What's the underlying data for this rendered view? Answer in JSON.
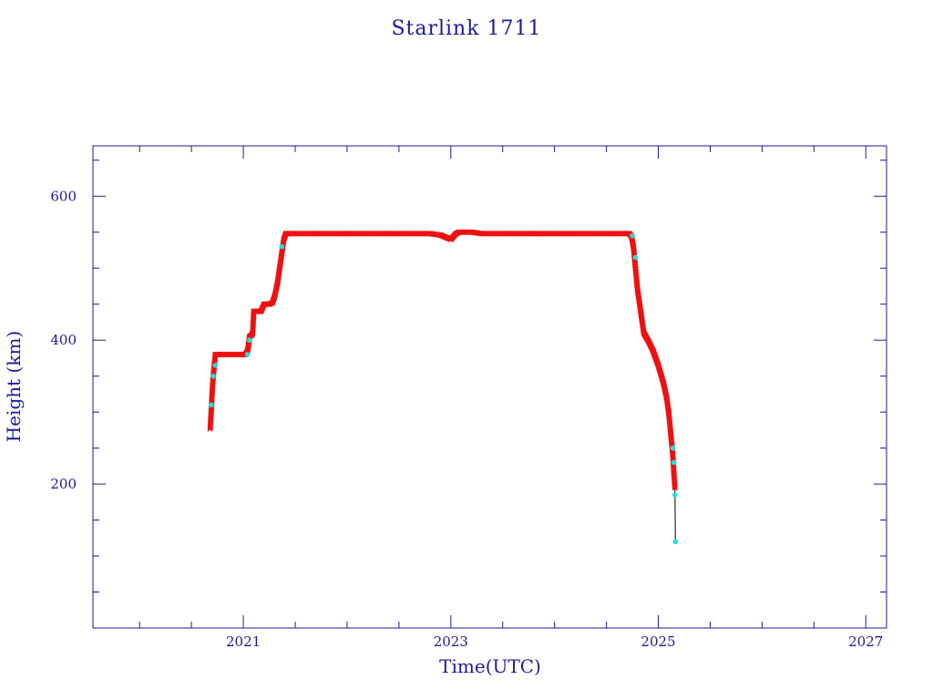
{
  "chart_data": {
    "type": "scatter",
    "title": "Starlink 1711",
    "xlabel": "Time(UTC)",
    "ylabel": "Height (km)",
    "xlim": [
      2019.55,
      2027.2
    ],
    "ylim": [
      0,
      670
    ],
    "x_major_ticks": [
      2021,
      2023,
      2025,
      2027
    ],
    "x_tick_labels": [
      "2021",
      "2023",
      "2025",
      "2027"
    ],
    "x_minor_ticks": [
      2020,
      2020.5,
      2021.5,
      2022,
      2022.5,
      2023.5,
      2024,
      2024.5,
      2025.5,
      2026,
      2026.5
    ],
    "y_major_ticks": [
      200,
      400,
      600
    ],
    "y_tick_labels": [
      "200",
      "400",
      "600"
    ],
    "y_minor_ticks": [
      50,
      100,
      150,
      250,
      300,
      350,
      450,
      500,
      550,
      650
    ],
    "grid": false,
    "colors": {
      "axes": "#1a1a9c",
      "red_series": "#ee1111",
      "cyan_series": "#22dddd",
      "line": "#000000"
    },
    "series": [
      {
        "marker": "x",
        "color": "#ee1111",
        "x": [
          2020.68,
          2020.69,
          2020.7,
          2020.71,
          2020.72,
          2020.73,
          2020.74,
          2020.78,
          2020.85,
          2020.92,
          2020.99,
          2021.0,
          2021.02,
          2021.04,
          2021.05,
          2021.06,
          2021.08,
          2021.09,
          2021.1,
          2021.12,
          2021.14,
          2021.17,
          2021.2,
          2021.22,
          2021.25,
          2021.28,
          2021.3,
          2021.33,
          2021.35,
          2021.37,
          2021.39,
          2021.41,
          2021.43,
          2021.45,
          2021.5,
          2021.7,
          2022.0,
          2022.4,
          2022.8,
          2022.9,
          2023.0,
          2023.05,
          2023.08,
          2023.12,
          2023.2,
          2023.3,
          2023.5,
          2023.8,
          2024.2,
          2024.6,
          2024.72,
          2024.74,
          2024.76,
          2024.78,
          2024.8,
          2024.83,
          2024.86,
          2024.9,
          2024.95,
          2025.0,
          2025.05,
          2025.08,
          2025.1,
          2025.12,
          2025.14,
          2025.15,
          2025.16
        ],
        "y": [
          277,
          300,
          330,
          350,
          365,
          380,
          380,
          380,
          380,
          380,
          380,
          380,
          380,
          385,
          393,
          405,
          407,
          410,
          440,
          440,
          440,
          440,
          450,
          450,
          450,
          452,
          460,
          480,
          500,
          520,
          540,
          548,
          548,
          548,
          548,
          548,
          548,
          548,
          548,
          546,
          540,
          548,
          550,
          550,
          550,
          548,
          548,
          548,
          548,
          548,
          548,
          545,
          530,
          500,
          470,
          440,
          410,
          400,
          385,
          365,
          340,
          320,
          300,
          270,
          240,
          215,
          195
        ]
      },
      {
        "marker": "dot",
        "color": "#22dddd",
        "x": [
          2020.69,
          2020.71,
          2020.73,
          2021.04,
          2021.06,
          2021.37,
          2024.75,
          2024.78,
          2025.14,
          2025.15,
          2025.16,
          2025.165
        ],
        "y": [
          310,
          350,
          365,
          380,
          400,
          530,
          545,
          515,
          250,
          230,
          185,
          120
        ]
      }
    ],
    "final_descent": {
      "x": [
        2025.16,
        2025.165
      ],
      "y": [
        195,
        120
      ]
    }
  }
}
